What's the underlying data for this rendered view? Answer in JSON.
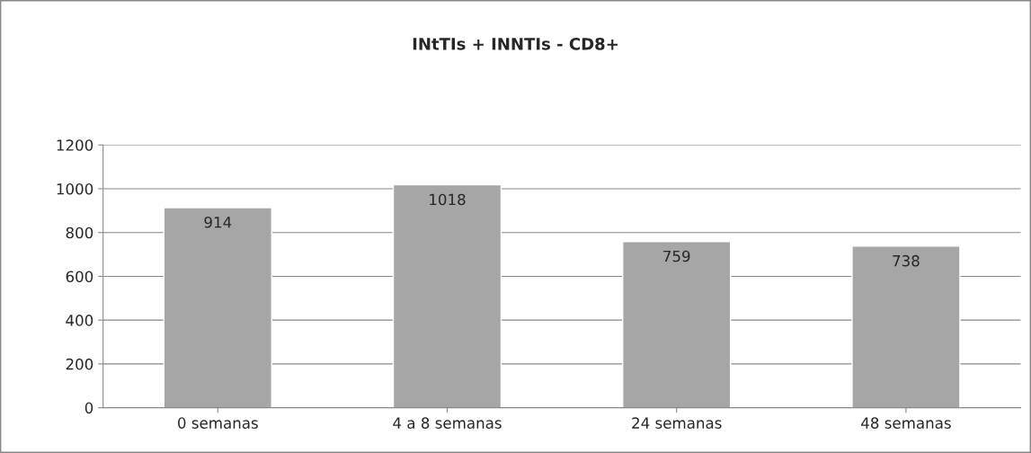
{
  "chart_data": {
    "type": "bar",
    "title": "INtTIs + INNTIs - CD8+",
    "categories": [
      "0 semanas",
      "4 a 8 semanas",
      "24 semanas",
      "48 semanas"
    ],
    "values": [
      914,
      1018,
      759,
      738
    ],
    "color": "#a6a6a6",
    "ylim": [
      0,
      1200
    ],
    "yticks": [
      0,
      200,
      400,
      600,
      800,
      1000,
      1200
    ],
    "grid": "y",
    "data_labels": true,
    "legend": false
  }
}
